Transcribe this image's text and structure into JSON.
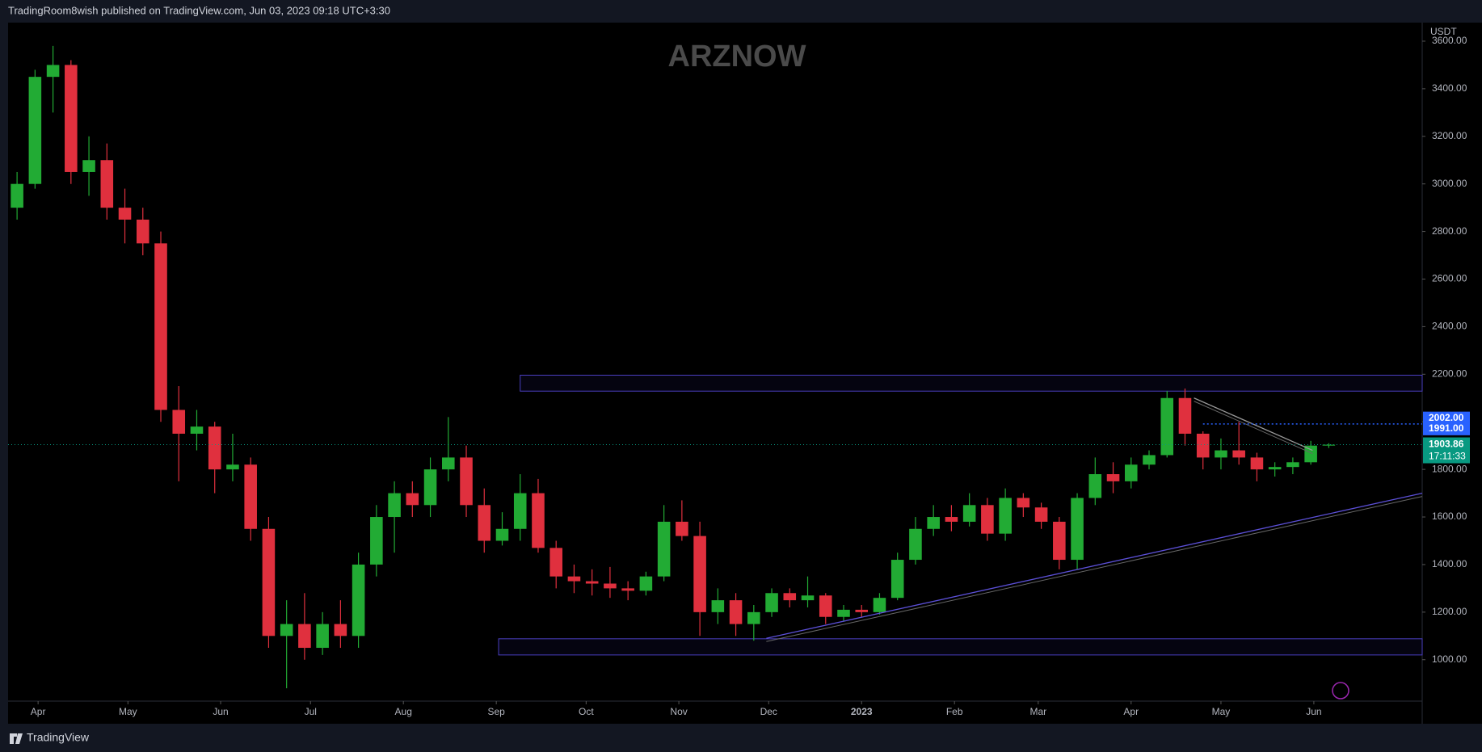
{
  "chart_data": {
    "type": "candlestick",
    "title": "TradingRoom8wish published on TradingView.com, Jun 03, 2023 09:18 UTC+3:30",
    "watermark": "ARZNOW",
    "footer": "TradingView",
    "currency": "USDT",
    "up_color": "#22ab34",
    "down_color": "#e0303e",
    "grid": false,
    "xlim": [
      0,
      78.7
    ],
    "ylim": [
      826,
      3678
    ],
    "yticks": [
      {
        "value": 1000,
        "label": "1000.00"
      },
      {
        "value": 1200,
        "label": "1200.00"
      },
      {
        "value": 1400,
        "label": "1400.00"
      },
      {
        "value": 1600,
        "label": "1600.00"
      },
      {
        "value": 1800,
        "label": "1800.00"
      },
      {
        "value": 2000,
        "label": "2000.00"
      },
      {
        "value": 2200,
        "label": "2200.00"
      },
      {
        "value": 2400,
        "label": "2400.00"
      },
      {
        "value": 2600,
        "label": "2600.00"
      },
      {
        "value": 2800,
        "label": "2800.00"
      },
      {
        "value": 3000,
        "label": "3000.00"
      },
      {
        "value": 3200,
        "label": "3200.00"
      },
      {
        "value": 3400,
        "label": "3400.00"
      },
      {
        "value": 3600,
        "label": "3600.00"
      }
    ],
    "xticks": [
      {
        "value": 1.67,
        "label": "Apr"
      },
      {
        "value": 6.67,
        "label": "May"
      },
      {
        "value": 11.83,
        "label": "Jun"
      },
      {
        "value": 16.83,
        "label": "Jul"
      },
      {
        "value": 22,
        "label": "Aug"
      },
      {
        "value": 27.17,
        "label": "Sep"
      },
      {
        "value": 32.17,
        "label": "Oct"
      },
      {
        "value": 37.33,
        "label": "Nov"
      },
      {
        "value": 42.33,
        "label": "Dec"
      },
      {
        "value": 47.5,
        "label": "2023"
      },
      {
        "value": 52.67,
        "label": "Feb"
      },
      {
        "value": 57.33,
        "label": "Mar"
      },
      {
        "value": 62.5,
        "label": "Apr"
      },
      {
        "value": 67.5,
        "label": "May"
      },
      {
        "value": 72.67,
        "label": "Jun"
      }
    ],
    "open": [
      2900,
      3000,
      3450,
      3500,
      3050,
      3100,
      2900,
      2850,
      2750,
      2050,
      1950,
      1980,
      1800,
      1820,
      1550,
      1100,
      1150,
      1050,
      1150,
      1100,
      1400,
      1600,
      1700,
      1650,
      1800,
      1850,
      1650,
      1500,
      1550,
      1700,
      1470,
      1350,
      1330,
      1320,
      1300,
      1290,
      1350,
      1580,
      1520,
      1200,
      1250,
      1150,
      1200,
      1280,
      1250,
      1270,
      1180,
      1210,
      1200,
      1260,
      1420,
      1550,
      1600,
      1580,
      1650,
      1530,
      1680,
      1640,
      1580,
      1420,
      1680,
      1780,
      1750,
      1820,
      1860,
      2100,
      1950,
      1850,
      1880,
      1850,
      1800,
      1810,
      1830,
      1900
    ],
    "high": [
      3050,
      3480,
      3580,
      3520,
      3200,
      3170,
      2980,
      2900,
      2800,
      2150,
      2050,
      2000,
      1950,
      1850,
      1600,
      1250,
      1280,
      1200,
      1250,
      1450,
      1650,
      1750,
      1750,
      1850,
      2020,
      1900,
      1720,
      1620,
      1780,
      1760,
      1500,
      1400,
      1380,
      1390,
      1330,
      1370,
      1650,
      1670,
      1580,
      1300,
      1280,
      1230,
      1300,
      1300,
      1350,
      1280,
      1230,
      1230,
      1280,
      1450,
      1600,
      1650,
      1650,
      1700,
      1680,
      1720,
      1700,
      1660,
      1600,
      1700,
      1850,
      1830,
      1850,
      1880,
      2130,
      2140,
      1960,
      1930,
      2000,
      1870,
      1830,
      1850,
      1920,
      1910
    ],
    "low": [
      2850,
      2980,
      3300,
      3000,
      2950,
      2850,
      2750,
      2700,
      2000,
      1750,
      1880,
      1700,
      1750,
      1500,
      1050,
      880,
      1000,
      1020,
      1050,
      1050,
      1350,
      1450,
      1600,
      1600,
      1750,
      1600,
      1450,
      1480,
      1500,
      1450,
      1300,
      1280,
      1270,
      1260,
      1250,
      1270,
      1330,
      1500,
      1100,
      1150,
      1100,
      1080,
      1180,
      1220,
      1220,
      1150,
      1160,
      1180,
      1190,
      1250,
      1400,
      1520,
      1540,
      1560,
      1500,
      1500,
      1600,
      1550,
      1380,
      1380,
      1650,
      1700,
      1720,
      1800,
      1850,
      1900,
      1800,
      1800,
      1820,
      1750,
      1770,
      1780,
      1820,
      1890
    ],
    "close": [
      3000,
      3450,
      3500,
      3050,
      3100,
      2900,
      2850,
      2750,
      2050,
      1950,
      1980,
      1800,
      1820,
      1550,
      1100,
      1150,
      1050,
      1150,
      1100,
      1400,
      1600,
      1700,
      1650,
      1800,
      1850,
      1650,
      1500,
      1550,
      1700,
      1470,
      1350,
      1330,
      1320,
      1300,
      1290,
      1350,
      1580,
      1520,
      1200,
      1250,
      1150,
      1200,
      1280,
      1250,
      1270,
      1180,
      1210,
      1200,
      1260,
      1420,
      1550,
      1600,
      1580,
      1650,
      1530,
      1680,
      1640,
      1580,
      1420,
      1680,
      1780,
      1750,
      1820,
      1860,
      2100,
      1950,
      1850,
      1880,
      1850,
      1800,
      1810,
      1830,
      1900,
      1903.86
    ],
    "zones": [
      {
        "x0": 28.5,
        "low": 2129,
        "high": 2196
      },
      {
        "x0": 27.3,
        "low": 1020,
        "high": 1088
      }
    ],
    "support_line": {
      "x": [
        42.2,
        78.7
      ],
      "y": [
        1090,
        1700
      ]
    },
    "resistance_line": {
      "x": [
        66,
        72.6
      ],
      "y": [
        2100,
        1880
      ]
    },
    "target_level": {
      "x0": 66.5,
      "value": 1991
    },
    "price_labels": [
      {
        "value": 2002,
        "label": "2002.00",
        "color": "#2962ff"
      },
      {
        "value": 1991,
        "label": "1991.00",
        "color": "#2962ff"
      }
    ],
    "last_price": 1903.86,
    "last_price_color": "#089981",
    "countdown": "17:11:33"
  }
}
